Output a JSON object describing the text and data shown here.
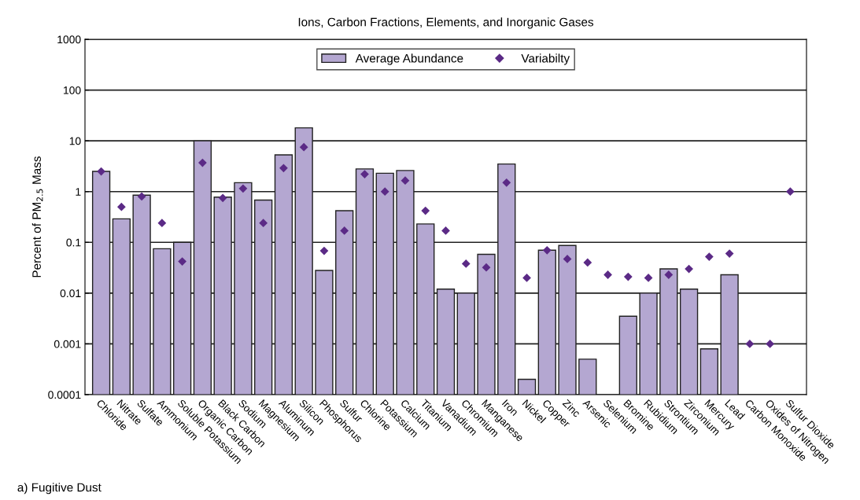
{
  "chart_data": {
    "type": "bar",
    "title": "Ions, Carbon Fractions, Elements, and Inorganic Gases",
    "ylabel": "Percent of PM$_{2.5}$ Mass",
    "categories": [
      "Chloride",
      "Nitrate",
      "Sulfate",
      "Ammonium",
      "Soluble Potassium",
      "Organic Carbon",
      "Black Carbon",
      "Sodium",
      "Magnesium",
      "Aluminum",
      "Silicon",
      "Phosphorus",
      "Sulfur",
      "Chlorine",
      "Potassium",
      "Calcium",
      "Titanium",
      "Vanadium",
      "Chromium",
      "Manganese",
      "Iron",
      "Nickel",
      "Copper",
      "Zinc",
      "Arsenic",
      "Selenium",
      "Bromine",
      "Rubidium",
      "Strontium",
      "Zirconium",
      "Mercury",
      "Lead",
      "Carbon Monoxide",
      "Oxides of Nitrogen",
      "Sulfur Dioxide"
    ],
    "series": [
      {
        "name": "Average Abundance",
        "color": "#b4a7d1",
        "values": [
          2.5,
          0.29,
          0.85,
          0.075,
          0.1,
          10,
          0.78,
          1.5,
          0.68,
          5.3,
          18,
          0.028,
          0.42,
          2.8,
          2.3,
          2.6,
          0.23,
          0.012,
          0.01,
          0.058,
          3.5,
          0.0002,
          0.07,
          0.087,
          0.0005,
          null,
          0.0035,
          0.01,
          0.03,
          0.012,
          0.0008,
          0.023,
          null,
          null,
          null
        ]
      },
      {
        "name": "Variabilty",
        "type": "scatter",
        "color": "#5b2a86",
        "marker": "diamond",
        "values": [
          2.5,
          0.5,
          0.8,
          0.24,
          0.042,
          3.7,
          0.75,
          1.15,
          0.24,
          2.9,
          7.5,
          0.068,
          0.17,
          2.2,
          1.0,
          1.65,
          0.42,
          0.17,
          0.038,
          0.032,
          1.5,
          0.02,
          0.07,
          0.047,
          0.04,
          0.023,
          0.021,
          0.02,
          0.023,
          0.03,
          0.052,
          0.06,
          0.001,
          0.001,
          1.0
        ]
      }
    ],
    "log": "y",
    "ylim": [
      0.0001,
      1000
    ],
    "yticks": [
      0.0001,
      0.001,
      0.01,
      0.1,
      1,
      10,
      100,
      1000
    ],
    "grid": "y",
    "legend": "top",
    "annotations": [
      "a) Fugitive Dust"
    ]
  }
}
